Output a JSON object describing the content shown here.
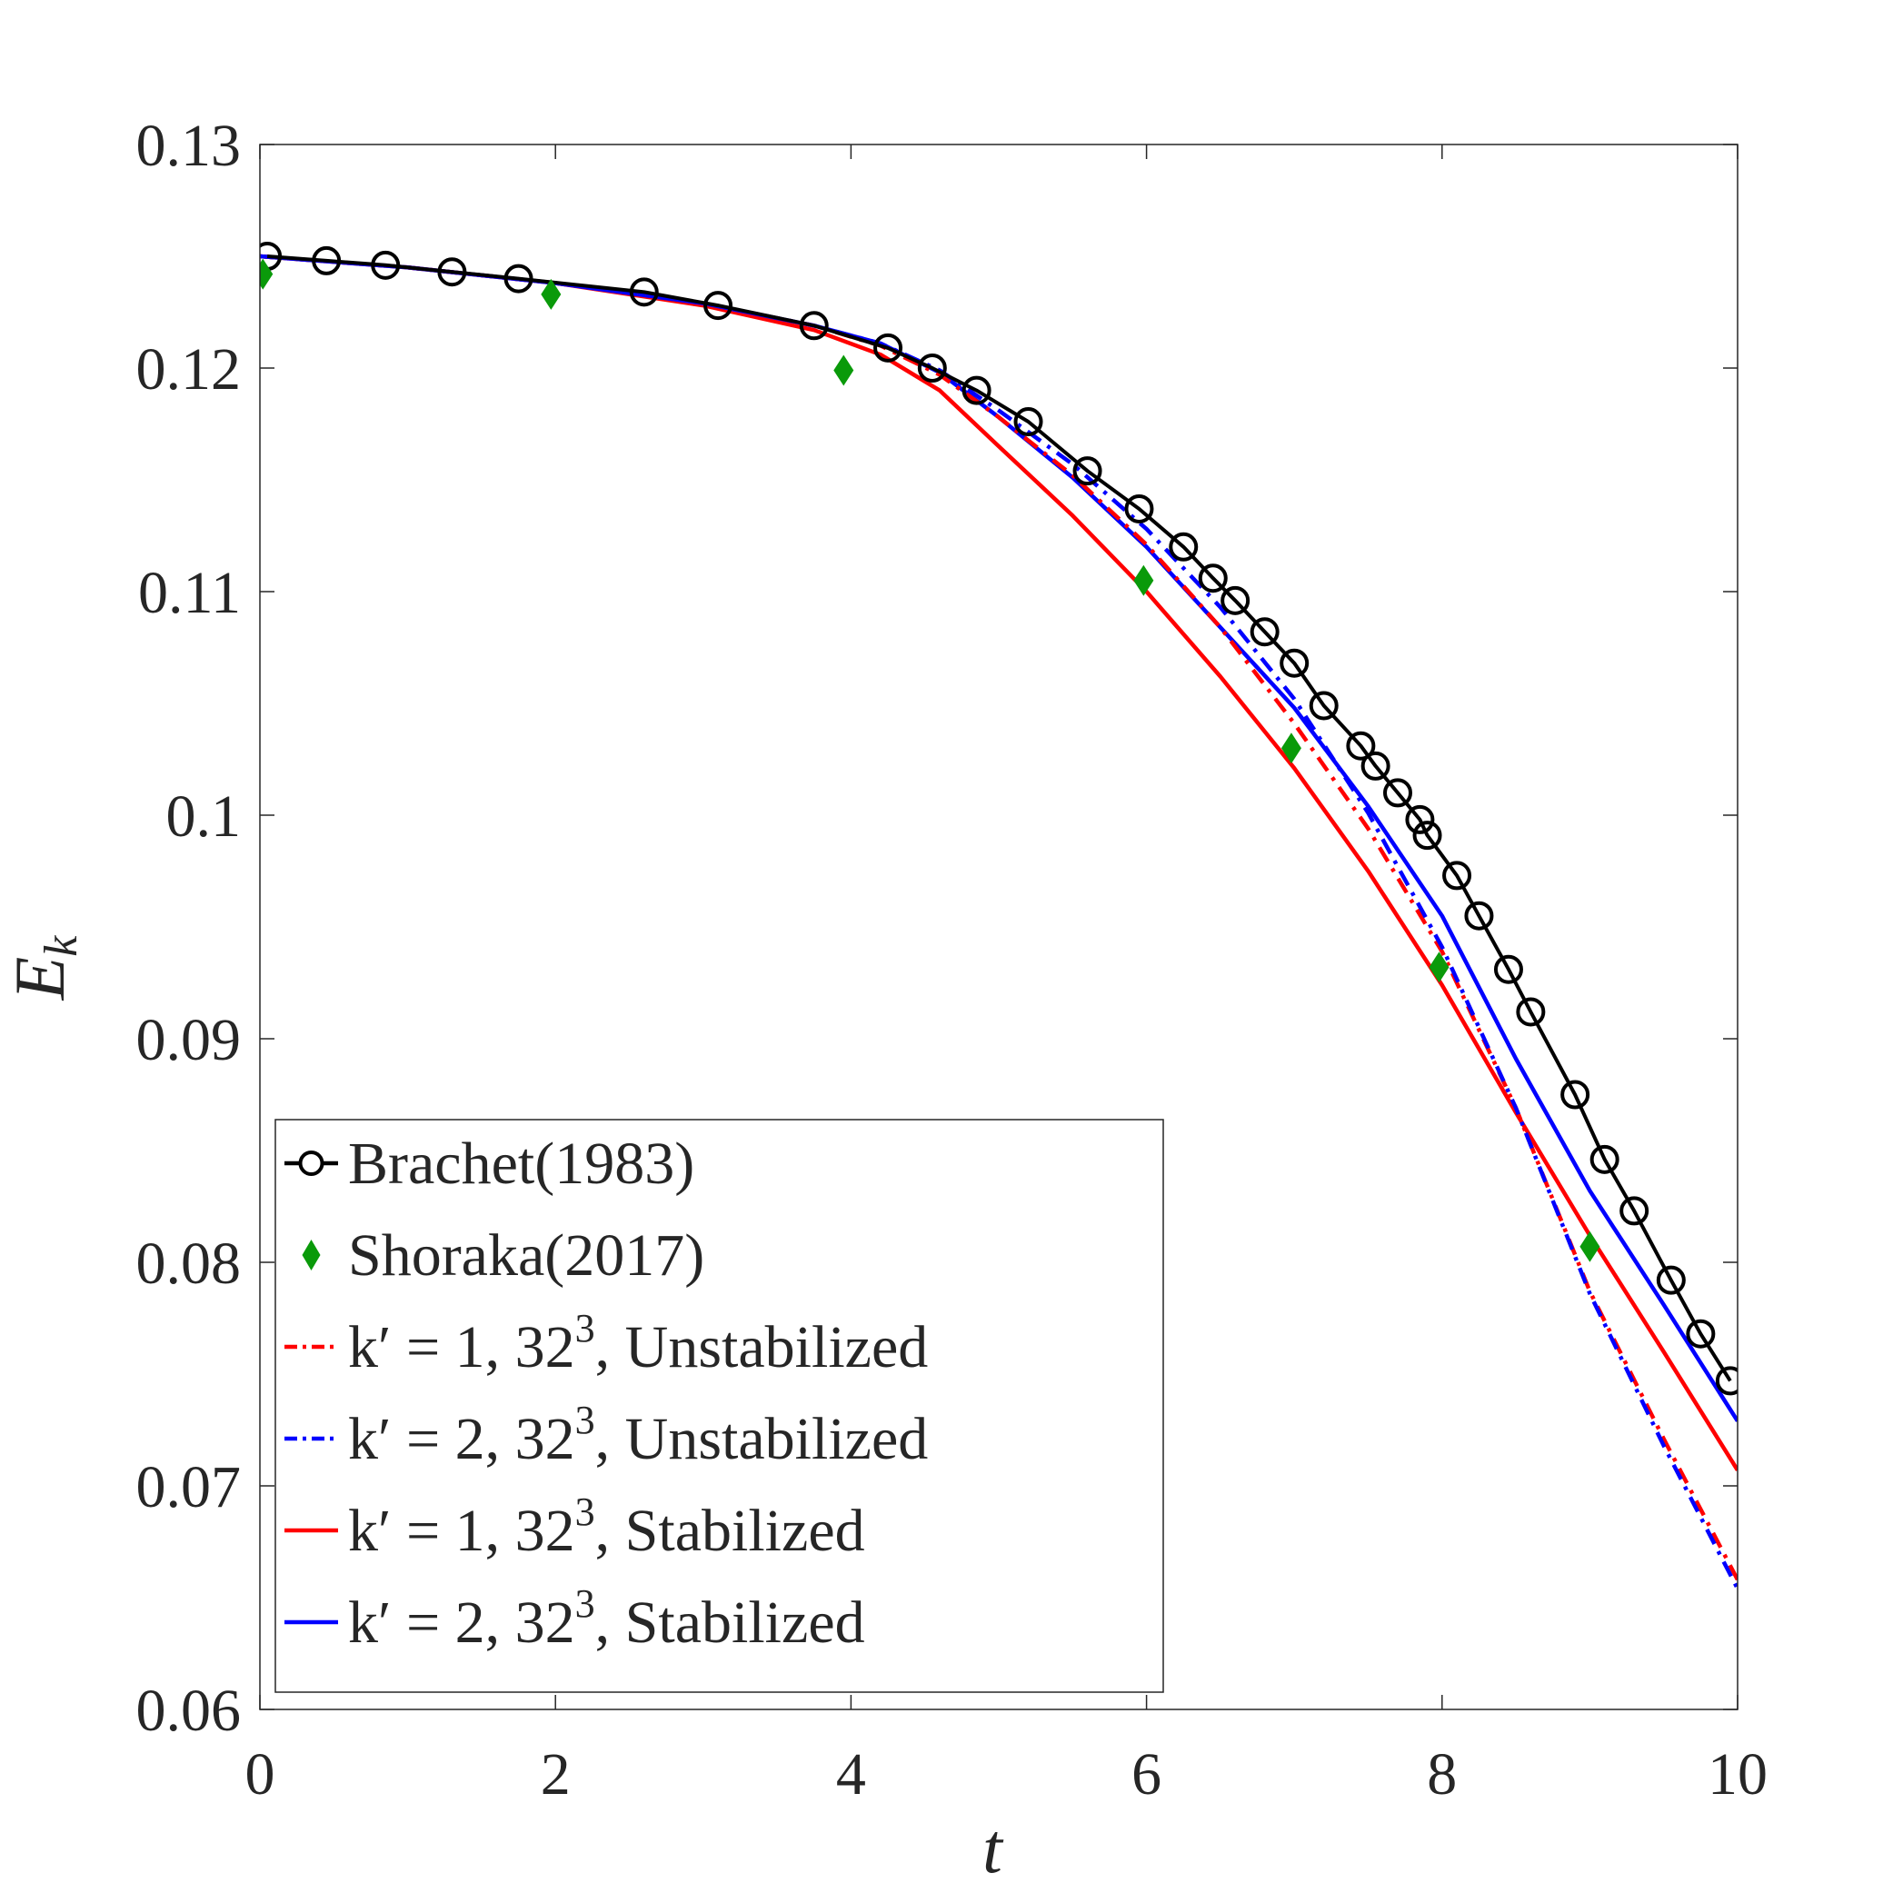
{
  "chart_data": {
    "type": "line",
    "title": "",
    "xlabel": "t",
    "ylabel": "E",
    "ylabel_sub": "k",
    "xlim": [
      0,
      10
    ],
    "ylim": [
      0.06,
      0.13
    ],
    "xticks": [
      0,
      2,
      4,
      6,
      8,
      10
    ],
    "xtick_labels": [
      "0",
      "2",
      "4",
      "6",
      "8",
      "10"
    ],
    "yticks": [
      0.06,
      0.07,
      0.08,
      0.09,
      0.1,
      0.11,
      0.12,
      0.13
    ],
    "ytick_labels": [
      "0.06",
      "0.07",
      "0.08",
      "0.09",
      "0.1",
      "0.11",
      "0.12",
      "0.13"
    ],
    "grid": false,
    "legend_position": "bottom-left",
    "series": [
      {
        "name": "Brachet(1983)",
        "legend": {
          "text": "Brachet(1983)"
        },
        "style": "line-circle",
        "color": "#000000",
        "x": [
          0.05,
          0.45,
          0.85,
          1.3,
          1.75,
          2.6,
          3.1,
          3.75,
          4.25,
          4.55,
          4.85,
          5.2,
          5.6,
          5.95,
          6.25,
          6.45,
          6.6,
          6.8,
          7.0,
          7.2,
          7.45,
          7.55,
          7.7,
          7.85,
          7.9,
          8.1,
          8.25,
          8.45,
          8.6,
          8.9,
          9.1,
          9.3,
          9.55,
          9.75,
          9.95
        ],
        "y": [
          0.125,
          0.1248,
          0.1246,
          0.1243,
          0.124,
          0.1234,
          0.1228,
          0.1219,
          0.1209,
          0.12,
          0.119,
          0.1176,
          0.1154,
          0.1137,
          0.112,
          0.1106,
          0.1096,
          0.1082,
          0.1068,
          0.1049,
          0.1031,
          0.1022,
          0.101,
          0.0998,
          0.0991,
          0.0973,
          0.0955,
          0.0931,
          0.0912,
          0.0875,
          0.0846,
          0.0823,
          0.0792,
          0.0768,
          0.0747
        ]
      },
      {
        "name": "Shoraka(2017)",
        "legend": {
          "text": "Shoraka(2017)"
        },
        "style": "diamond",
        "color": "#0a9a0a",
        "x": [
          0.02,
          1.97,
          3.95,
          5.98,
          6.98,
          7.98,
          9.0
        ],
        "y": [
          0.1242,
          0.1233,
          0.1199,
          0.1105,
          0.103,
          0.0932,
          0.0807
        ]
      },
      {
        "name": "k'=1, 32^3, Unstabilized",
        "legend": {
          "lhs": "k′ = 1, 32",
          "sup": "3",
          "rhs": ", Unstabilized"
        },
        "style": "dashdot",
        "color": "#ff0000",
        "x": [
          0,
          1,
          2,
          3,
          3.75,
          4.2,
          4.6,
          5,
          5.5,
          6,
          6.5,
          7,
          7.5,
          8,
          8.5,
          9,
          9.5,
          10
        ],
        "y": [
          0.125,
          0.1245,
          0.1238,
          0.1229,
          0.1219,
          0.121,
          0.1197,
          0.1178,
          0.1152,
          0.1121,
          0.1084,
          0.1041,
          0.0994,
          0.0939,
          0.0869,
          0.0787,
          0.0721,
          0.0658
        ]
      },
      {
        "name": "k'=2, 32^3, Unstabilized",
        "legend": {
          "lhs": "k′ = 2, 32",
          "sup": "3",
          "rhs": ", Unstabilized"
        },
        "style": "dashdot",
        "color": "#0000ff",
        "x": [
          0,
          1,
          2,
          3,
          3.75,
          4.2,
          4.6,
          5,
          5.5,
          6,
          6.5,
          7,
          7.5,
          8,
          8.5,
          9,
          9.5,
          10
        ],
        "y": [
          0.125,
          0.1245,
          0.1238,
          0.1229,
          0.1219,
          0.1211,
          0.1199,
          0.1181,
          0.1157,
          0.1128,
          0.1093,
          0.1052,
          0.1001,
          0.0941,
          0.0869,
          0.0786,
          0.0718,
          0.0654
        ]
      },
      {
        "name": "k'=1, 32^3, Stabilized",
        "legend": {
          "lhs": "k′ = 1, 32",
          "sup": "3",
          "rhs": ", Stabilized"
        },
        "style": "solid",
        "color": "#ff0000",
        "x": [
          0,
          1,
          2,
          3,
          3.75,
          4.2,
          4.6,
          5,
          5.5,
          6,
          6.5,
          7,
          7.5,
          8,
          8.5,
          9,
          9.5,
          10
        ],
        "y": [
          0.125,
          0.1245,
          0.1238,
          0.1228,
          0.1217,
          0.1206,
          0.119,
          0.1165,
          0.1134,
          0.11,
          0.1062,
          0.1021,
          0.0975,
          0.0924,
          0.0867,
          0.0812,
          0.076,
          0.0707
        ]
      },
      {
        "name": "k'=2, 32^3, Stabilized",
        "legend": {
          "lhs": "k′ = 2, 32",
          "sup": "3",
          "rhs": ", Stabilized"
        },
        "style": "solid",
        "color": "#0000ff",
        "x": [
          0,
          1,
          2,
          3,
          3.75,
          4.2,
          4.6,
          5,
          5.5,
          6,
          6.5,
          7,
          7.5,
          8,
          8.5,
          9,
          9.5,
          10
        ],
        "y": [
          0.125,
          0.1245,
          0.1238,
          0.1229,
          0.1219,
          0.1211,
          0.1198,
          0.1178,
          0.1151,
          0.112,
          0.1084,
          0.1048,
          0.1004,
          0.0955,
          0.0891,
          0.0832,
          0.0781,
          0.0729
        ]
      }
    ]
  }
}
